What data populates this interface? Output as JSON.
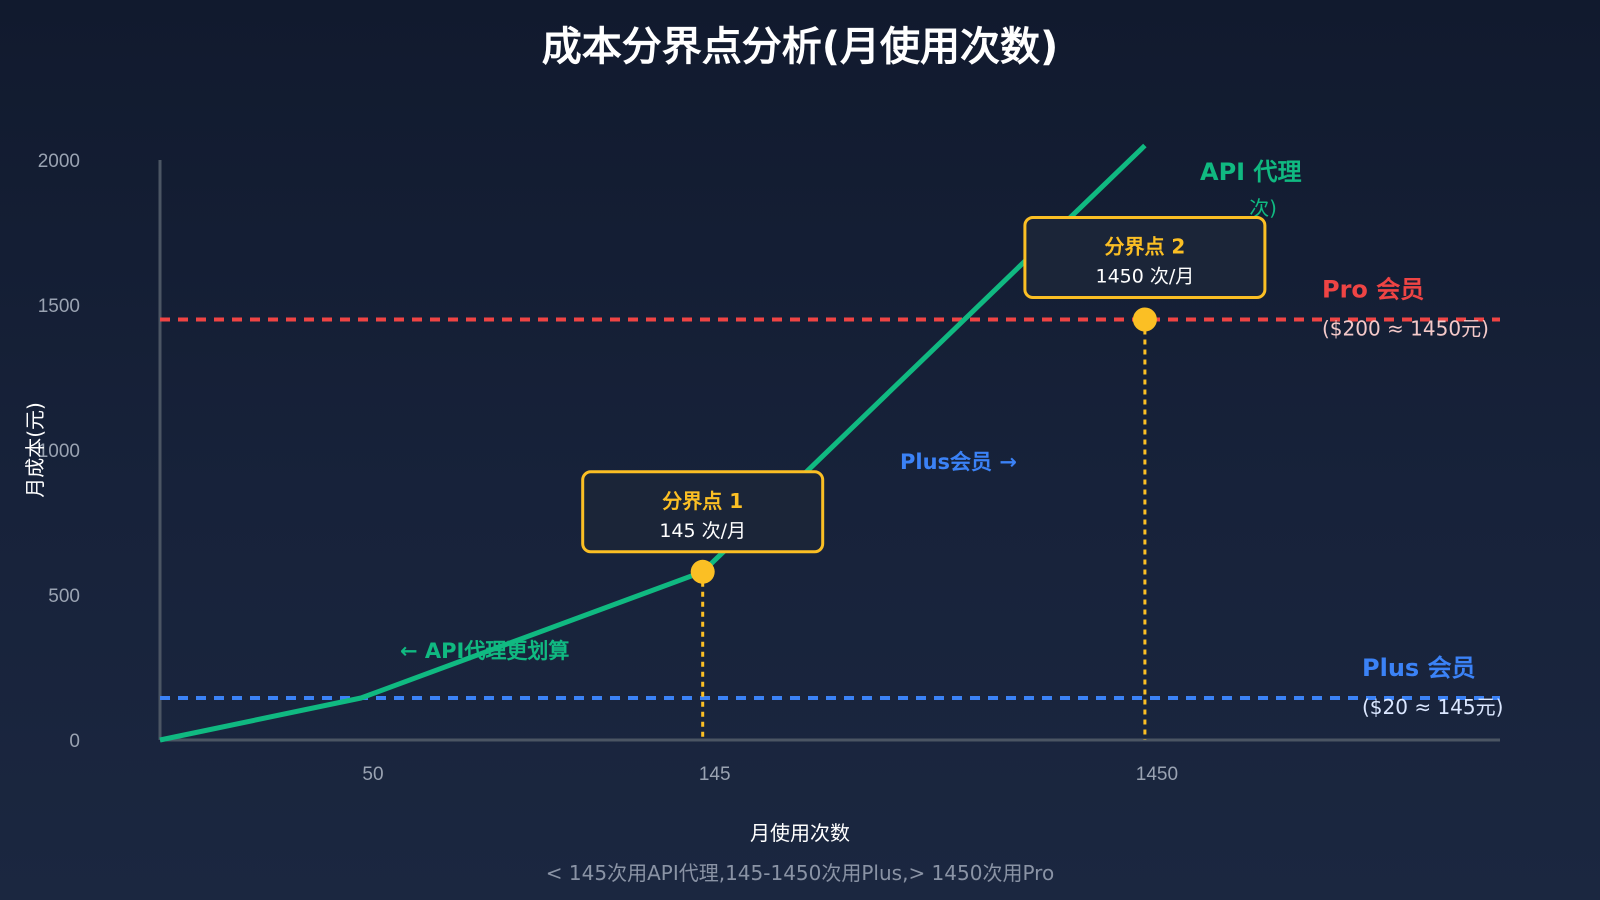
{
  "chart_data": {
    "type": "line",
    "title": "成本分界点分析(月使用次数)",
    "xlabel": "月使用次数",
    "ylabel": "月成本(元)",
    "x_ticks": [
      "50",
      "145",
      "1450"
    ],
    "y_ticks": [
      "0",
      "500",
      "1000",
      "1500",
      "2000"
    ],
    "ylim": [
      0,
      2000
    ],
    "series": [
      {
        "name": "API 代理",
        "points": [
          [
            0,
            0
          ],
          [
            50,
            145
          ],
          [
            145,
            580
          ],
          [
            1450,
            2050
          ]
        ],
        "color": "#10b981"
      }
    ],
    "reference_lines": [
      {
        "name": "Pro 会员",
        "sub": "($200 ≈ 1450元)",
        "value": 1450,
        "color": "#ef4444"
      },
      {
        "name": "Plus 会员",
        "sub": "($20 ≈ 145元)",
        "value": 145,
        "color": "#3b82f6"
      }
    ],
    "breakpoints": [
      {
        "title": "分界点 1",
        "label": "145 次/月",
        "x": 145,
        "y": 580
      },
      {
        "title": "分界点 2",
        "label": "1450 次/月",
        "x": 1450,
        "y": 1450
      }
    ],
    "annotations": {
      "api_cheaper": "← API代理更划算",
      "plus_region": "Plus会员 →",
      "api_sub_partial": "次)"
    },
    "footnote": "< 145次用API代理,145-1450次用Plus,> 1450次用Pro",
    "colors": {
      "breakpoint": "#fbbf24",
      "axis": "#4b5563"
    }
  }
}
